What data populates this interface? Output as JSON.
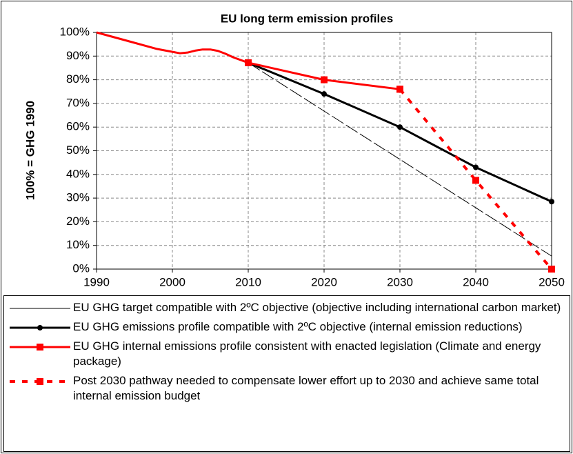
{
  "chart_data": {
    "type": "line",
    "title": "EU long term emission profiles",
    "y_label": "100% = GHG 1990",
    "xlim": [
      1990,
      2050
    ],
    "xticks": [
      1990,
      2000,
      2010,
      2020,
      2030,
      2040,
      2050
    ],
    "ylim": [
      0,
      100
    ],
    "yticks": [
      {
        "value": 0,
        "label": "0%"
      },
      {
        "value": 10,
        "label": "10%"
      },
      {
        "value": 20,
        "label": "20%"
      },
      {
        "value": 30,
        "label": "30%"
      },
      {
        "value": 40,
        "label": "40%"
      },
      {
        "value": 50,
        "label": "50%"
      },
      {
        "value": 60,
        "label": "60%"
      },
      {
        "value": 70,
        "label": "70%"
      },
      {
        "value": 80,
        "label": "80%"
      },
      {
        "value": 90,
        "label": "90%"
      },
      {
        "value": 100,
        "label": "100%"
      }
    ],
    "grid": true,
    "legend": "bottom",
    "series": [
      {
        "color": "#ff0000",
        "line_style": "solid",
        "x": [
          1990,
          1994,
          1998,
          2000,
          2001,
          2002,
          2003,
          2004,
          2005,
          2006,
          2007,
          2008,
          2010
        ],
        "values": [
          100,
          96.5,
          93,
          91.8,
          91.2,
          91.5,
          92.3,
          92.8,
          92.8,
          92.2,
          91,
          89.5,
          87.2
        ]
      },
      {
        "name": "EU GHG target compatible with 2ºC objective (objective including international carbon market)",
        "color": "#000000",
        "line_style": "thin-dashed",
        "x": [
          2010,
          2050
        ],
        "values": [
          87.2,
          5.5
        ]
      },
      {
        "name": "EU GHG emissions profile compatible with 2ºC objective (internal emission reductions)",
        "color": "#000000",
        "line_style": "solid",
        "marker": "circle",
        "x": [
          2010,
          2020,
          2030,
          2040,
          2050
        ],
        "values": [
          87.2,
          74,
          60,
          43,
          28.5
        ]
      },
      {
        "name": "EU GHG internal emissions profile consistent with enacted legislation (Climate and energy package)",
        "color": "#ff0000",
        "line_style": "solid",
        "marker": "square",
        "x": [
          2010,
          2020,
          2030
        ],
        "values": [
          87.2,
          80,
          76
        ]
      },
      {
        "name": "Post 2030 pathway needed to compensate lower effort up to 2030 and achieve same total internal emission budget",
        "color": "#ff0000",
        "line_style": "dotted",
        "marker": "square",
        "x": [
          2030,
          2040,
          2050
        ],
        "values": [
          76,
          37.5,
          0
        ]
      }
    ]
  }
}
